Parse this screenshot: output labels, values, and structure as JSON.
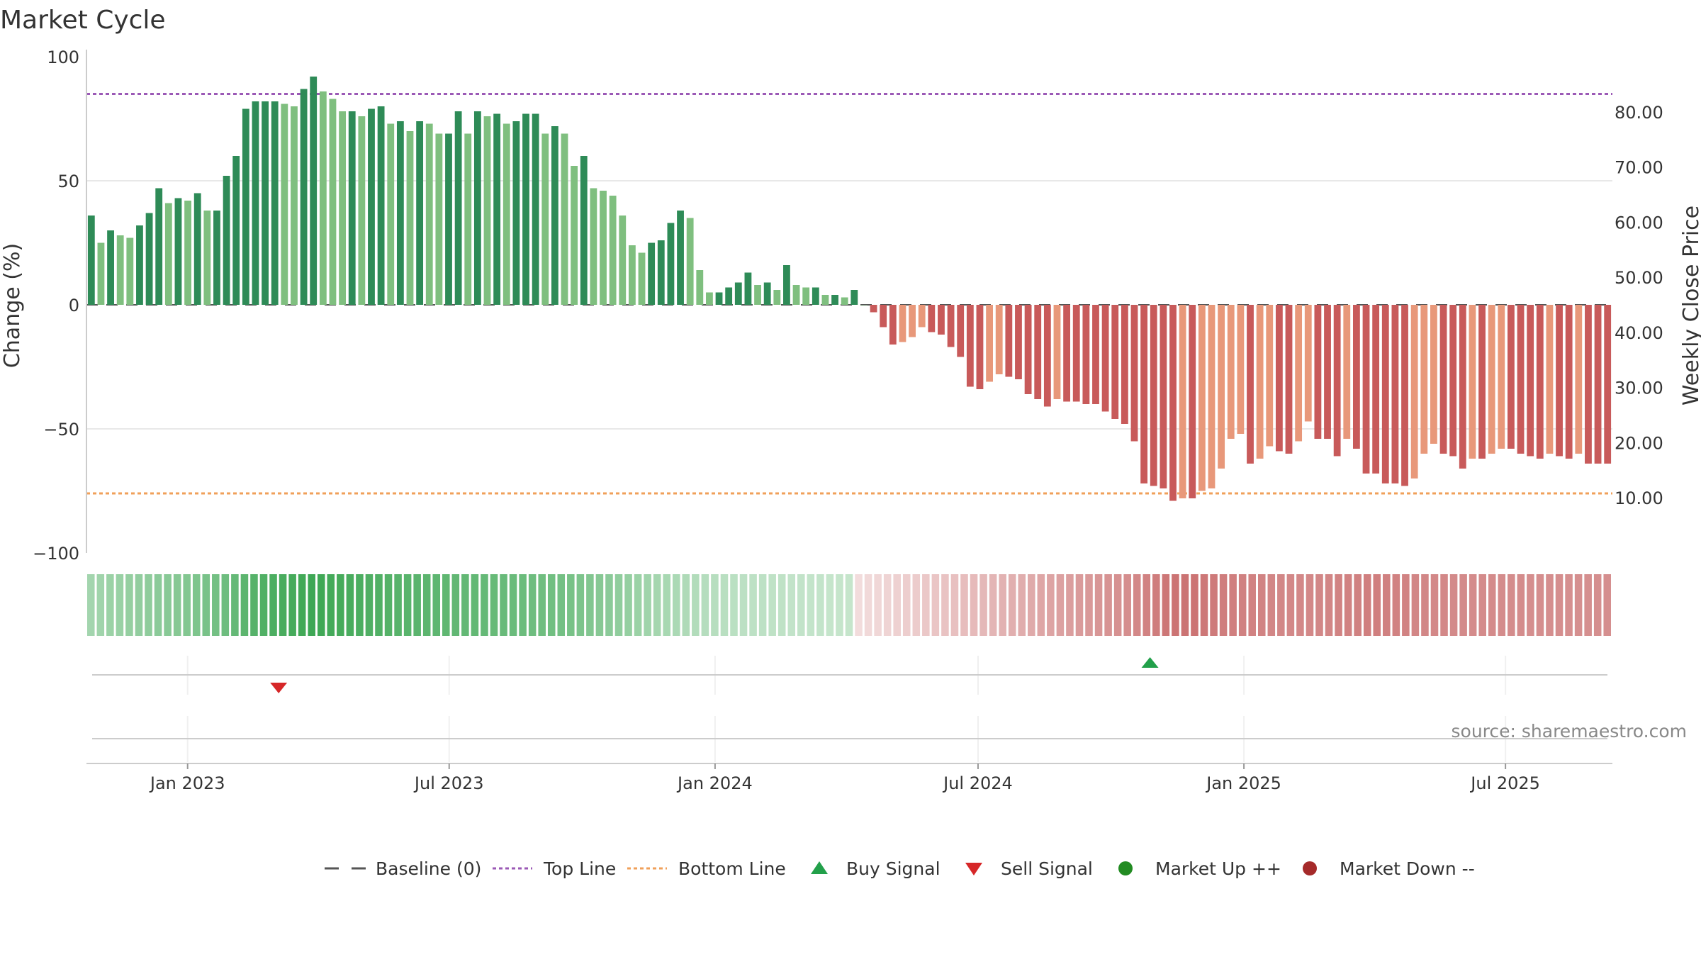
{
  "chart_data": {
    "type": "bar",
    "title": "Market Cycle",
    "ylabel": "Change (%)",
    "y2label": "Weekly Close Price",
    "ylim": [
      -100,
      100
    ],
    "y2lim": [
      0,
      90
    ],
    "yticks": [
      100,
      50,
      0,
      -50,
      -100
    ],
    "y2ticks": [
      "80.00",
      "70.00",
      "60.00",
      "50.00",
      "40.00",
      "30.00",
      "20.00",
      "10.00"
    ],
    "xticks": [
      "Jan 2023",
      "Jul 2023",
      "Jan 2024",
      "Jul 2024",
      "Jan 2025",
      "Jul 2025"
    ],
    "xtick_dates": [
      "2023-01-01",
      "2023-07-01",
      "2024-01-01",
      "2024-07-01",
      "2025-01-01",
      "2025-07-01"
    ],
    "x_start": "2022-10-23",
    "x_end": "2025-09-13",
    "top_line": 85,
    "bottom_line": -76,
    "grid": true,
    "legend_position": "bottom-center",
    "colors": {
      "up_dark": "#2e8b57",
      "up_light": "#7fbf7f",
      "down_dark": "#c85a5a",
      "down_light": "#e8987a",
      "top_line": "#9b59b6",
      "bottom_line": "#f0a05a",
      "buy": "#22a04a",
      "sell": "#d62728",
      "market_up": "#228b22",
      "market_down": "#a52a2a",
      "baseline": "#555555"
    },
    "series": [
      {
        "values": [
          36,
          25,
          30,
          28,
          27,
          32,
          37,
          47,
          41,
          43,
          42,
          45,
          38,
          38,
          52,
          60,
          79,
          82,
          82,
          82,
          81,
          80,
          87,
          92,
          86,
          83,
          78,
          78,
          76,
          79,
          80,
          73,
          74,
          70,
          74,
          73,
          69,
          69,
          78,
          69,
          78,
          76,
          77,
          73,
          74,
          77,
          77,
          69,
          72,
          69,
          56,
          60,
          47,
          46,
          44,
          36,
          24,
          21,
          25,
          26,
          33,
          38,
          35,
          14,
          5,
          5,
          7,
          9,
          13,
          8,
          9,
          6,
          16,
          8,
          7,
          7,
          4,
          4,
          3,
          6,
          0,
          -3,
          -9,
          -16,
          -15,
          -13,
          -9,
          -11,
          -12,
          -17,
          -21,
          -33,
          -34,
          -31,
          -28,
          -29,
          -30,
          -36,
          -38,
          -41,
          -38,
          -39,
          -39,
          -40,
          -40,
          -43,
          -46,
          -48,
          -55,
          -72,
          -73,
          -74,
          -79,
          -78,
          -78,
          -75,
          -74,
          -66,
          -54,
          -52,
          -64,
          -62,
          -57,
          -59,
          -60,
          -55,
          -47,
          -54,
          -54,
          -61,
          -54,
          -58,
          -68,
          -68,
          -72,
          -72,
          -73,
          -70,
          -60,
          -56,
          -60,
          -61,
          -66,
          -62,
          -62,
          -60,
          -58,
          -58,
          -60,
          -61,
          -62,
          -60,
          -61,
          -62,
          -60,
          -64,
          -64,
          -64
        ]
      }
    ],
    "heat_values": [
      0.3,
      0.32,
      0.35,
      0.36,
      0.38,
      0.4,
      0.42,
      0.44,
      0.46,
      0.47,
      0.49,
      0.52,
      0.55,
      0.58,
      0.62,
      0.67,
      0.72,
      0.76,
      0.79,
      0.82,
      0.84,
      0.86,
      0.88,
      0.9,
      0.89,
      0.87,
      0.86,
      0.84,
      0.82,
      0.8,
      0.79,
      0.77,
      0.75,
      0.74,
      0.73,
      0.72,
      0.71,
      0.7,
      0.69,
      0.68,
      0.68,
      0.67,
      0.66,
      0.65,
      0.64,
      0.63,
      0.62,
      0.61,
      0.6,
      0.58,
      0.56,
      0.53,
      0.5,
      0.47,
      0.44,
      0.41,
      0.38,
      0.35,
      0.32,
      0.29,
      0.27,
      0.25,
      0.23,
      0.21,
      0.19,
      0.18,
      0.17,
      0.16,
      0.15,
      0.14,
      0.14,
      0.13,
      0.13,
      0.12,
      0.12,
      0.11,
      0.11,
      0.1,
      0.1,
      0.1,
      -0.1,
      -0.12,
      -0.14,
      -0.16,
      -0.18,
      -0.2,
      -0.22,
      -0.24,
      -0.26,
      -0.28,
      -0.3,
      -0.32,
      -0.34,
      -0.36,
      -0.38,
      -0.4,
      -0.42,
      -0.44,
      -0.46,
      -0.48,
      -0.5,
      -0.52,
      -0.54,
      -0.56,
      -0.58,
      -0.6,
      -0.62,
      -0.64,
      -0.66,
      -0.7,
      -0.74,
      -0.78,
      -0.82,
      -0.84,
      -0.85,
      -0.84,
      -0.82,
      -0.8,
      -0.78,
      -0.76,
      -0.75,
      -0.74,
      -0.73,
      -0.72,
      -0.71,
      -0.7,
      -0.7,
      -0.7,
      -0.71,
      -0.72,
      -0.73,
      -0.74,
      -0.75,
      -0.76,
      -0.76,
      -0.75,
      -0.74,
      -0.73,
      -0.72,
      -0.71,
      -0.7,
      -0.7,
      -0.69,
      -0.69,
      -0.68,
      -0.68,
      -0.68,
      -0.67,
      -0.67,
      -0.67,
      -0.66,
      -0.66,
      -0.66,
      -0.66,
      -0.65,
      -0.65,
      -0.65,
      -0.65,
      -0.65
    ],
    "buy_signals": [
      "2024-10-28"
    ],
    "sell_signals": [
      "2023-03-05"
    ],
    "legend": [
      {
        "label": "Baseline (0)",
        "marker": "dash"
      },
      {
        "label": "Top Line",
        "marker": "dotted-purple"
      },
      {
        "label": "Bottom Line",
        "marker": "dotted-orange"
      },
      {
        "label": "Buy Signal",
        "marker": "triangle-up"
      },
      {
        "label": "Sell Signal",
        "marker": "triangle-down"
      },
      {
        "label": "Market Up ++",
        "marker": "circle-green"
      },
      {
        "label": "Market Down --",
        "marker": "circle-red"
      }
    ],
    "source": "source: sharemaestro.com"
  }
}
